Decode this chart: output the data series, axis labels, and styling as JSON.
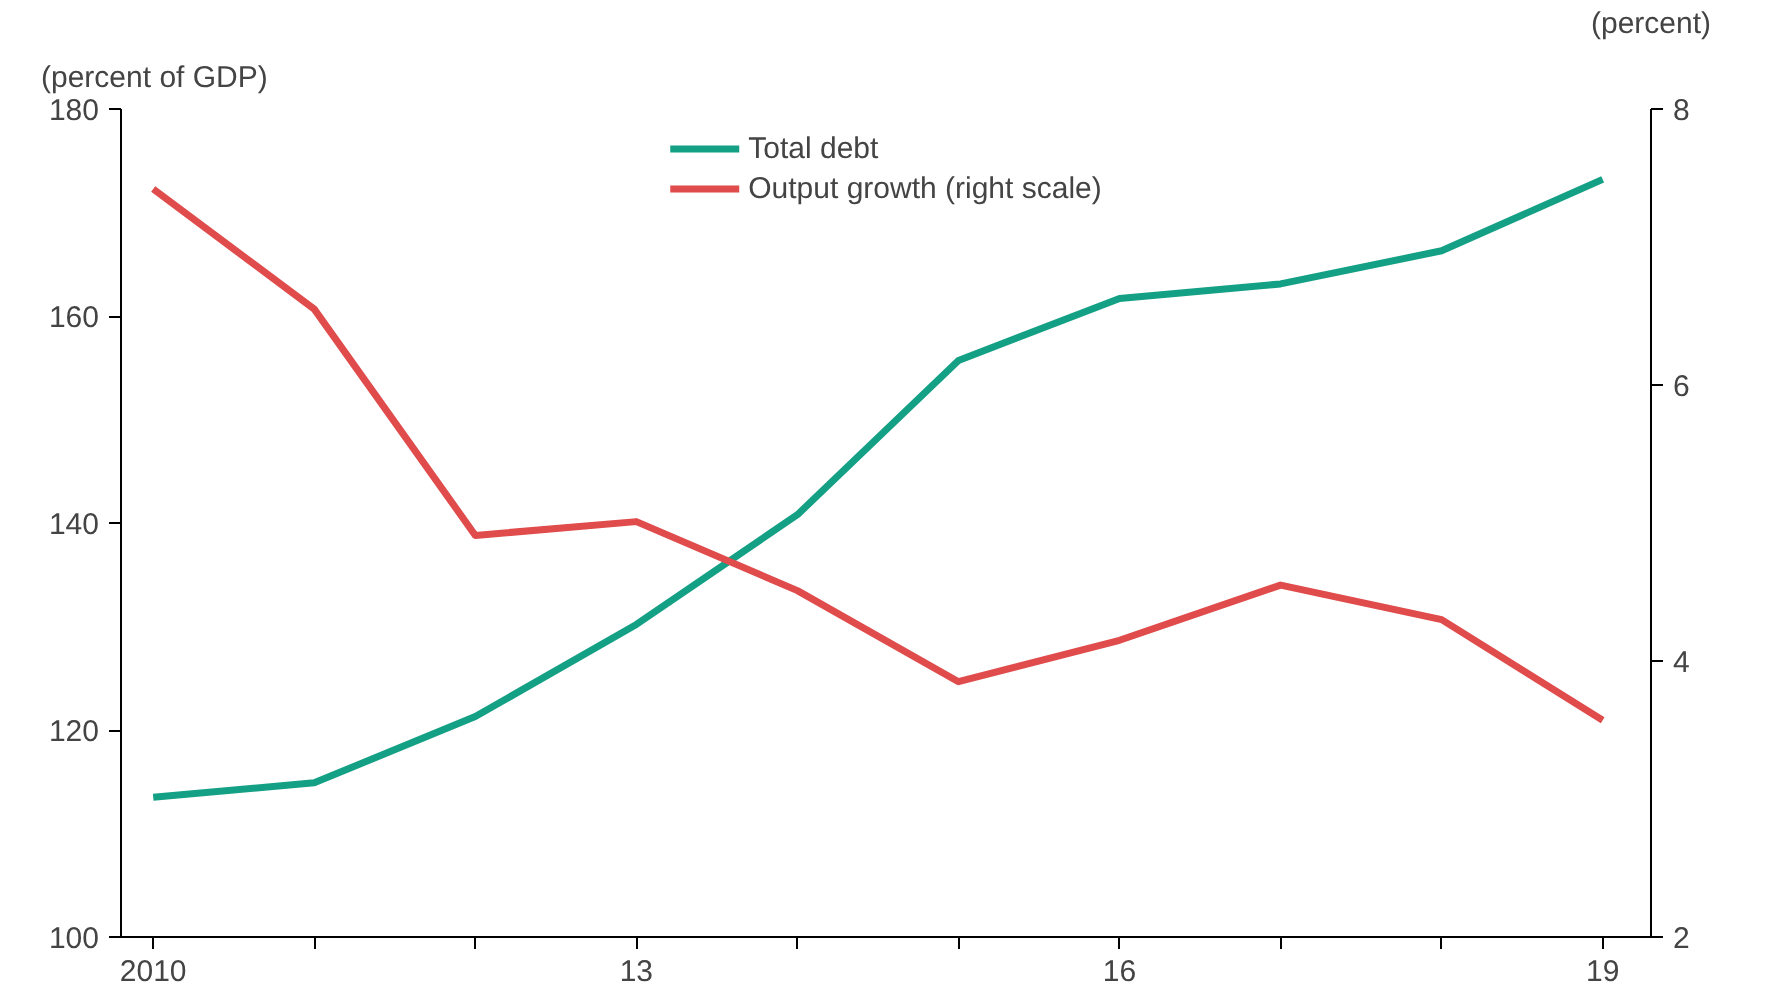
{
  "chart_data": {
    "type": "line",
    "ylabel": "(percent of GDP)",
    "y2label": "(percent)",
    "x": [
      2010,
      2011,
      2012,
      2013,
      2014,
      2015,
      2016,
      2017,
      2018,
      2019
    ],
    "series": [
      {
        "name": "Total debt",
        "color": "#14a085",
        "values": [
          113.5,
          114.9,
          121.3,
          130.2,
          140.8,
          155.7,
          161.7,
          163.1,
          166.3,
          173.2
        ]
      },
      {
        "name": "Output growth (right scale)",
        "color": "#e04b4b",
        "axis": "y2",
        "values": [
          7.42,
          6.55,
          4.91,
          5.01,
          4.51,
          3.85,
          4.15,
          4.55,
          4.3,
          3.57
        ]
      }
    ],
    "xlim": [
      2009.8,
      2019.3
    ],
    "xticks": [
      2010,
      {
        "value": 2011,
        "label": null
      },
      {
        "value": 2012,
        "label": null
      },
      {
        "value": 2013,
        "label": "13"
      },
      {
        "value": 2014,
        "label": null
      },
      {
        "value": 2015,
        "label": null
      },
      {
        "value": 2016,
        "label": "16"
      },
      {
        "value": 2017,
        "label": null
      },
      {
        "value": 2018,
        "label": null
      },
      {
        "value": 2019,
        "label": "19"
      }
    ],
    "ylim": [
      100,
      180
    ],
    "yticks": [
      100,
      120,
      140,
      160,
      180
    ],
    "y2lim": [
      2,
      8
    ],
    "y2ticks": [
      2,
      4,
      6,
      8
    ],
    "grid": false,
    "legend": "top",
    "line_style": "solid"
  }
}
